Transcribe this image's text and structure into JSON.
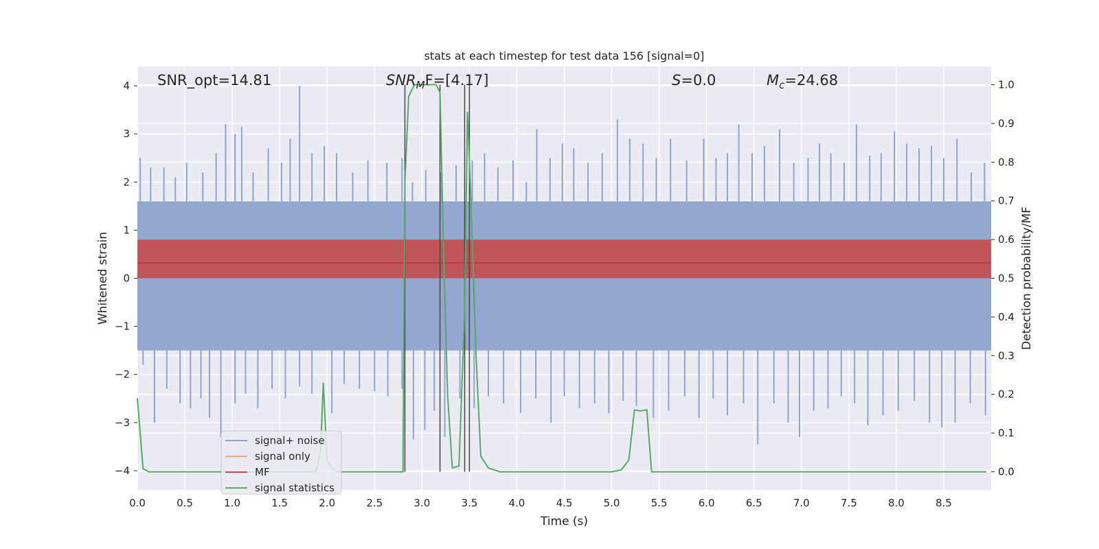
{
  "chart_data": {
    "type": "line",
    "title": "stats at each timestep for test data 156 [signal=0]",
    "xlabel": "Time (s)",
    "ylabel_left": "Whitened strain",
    "ylabel_right": "Detection probability/MF",
    "xlim": [
      0.0,
      9.0
    ],
    "ylim_left": [
      -4.4,
      4.4
    ],
    "ylim_right": [
      -0.047,
      1.047
    ],
    "x_ticks": [
      0.0,
      0.5,
      1.0,
      1.5,
      2.0,
      2.5,
      3.0,
      3.5,
      4.0,
      4.5,
      5.0,
      5.5,
      6.0,
      6.5,
      7.0,
      7.5,
      8.0,
      8.5
    ],
    "x_tick_labels": [
      "0.0",
      "0.5",
      "1.0",
      "1.5",
      "2.0",
      "2.5",
      "3.0",
      "3.5",
      "4.0",
      "4.5",
      "5.0",
      "5.5",
      "6.0",
      "6.5",
      "7.0",
      "7.5",
      "8.0",
      "8.5"
    ],
    "y_ticks_left": [
      4,
      3,
      2,
      1,
      0,
      -1,
      -2,
      -3,
      -4
    ],
    "y_tick_labels_left": [
      "4",
      "3",
      "2",
      "1",
      "0",
      "−1",
      "−2",
      "−3",
      "−4"
    ],
    "y_ticks_right": [
      1.0,
      0.9,
      0.8,
      0.7,
      0.6,
      0.5,
      0.4,
      0.3,
      0.2,
      0.1,
      0.0
    ],
    "y_tick_labels_right": [
      "1.0",
      "0.9",
      "0.8",
      "0.7",
      "0.6",
      "0.5",
      "0.4",
      "0.3",
      "0.2",
      "0.1",
      "0.0"
    ],
    "grid": true,
    "legend_position": "lower-left",
    "annotations": {
      "snr_opt": "SNR_opt=14.81",
      "snr_mf_main": "SNR",
      "snr_mf_sub": "M",
      "snr_mf_rest": "F=[4.17]",
      "s_label": "S",
      "s_value": "=0.0",
      "mc_label": "M",
      "mc_sub": "c",
      "mc_value": "=24.68"
    },
    "vertical_markers_s": [
      2.82,
      3.19,
      3.45,
      3.5
    ],
    "series": [
      {
        "name": "signal+ noise",
        "axis": "left",
        "color": "#8fa4cc",
        "noise_band": [
          -1.5,
          1.6
        ],
        "spike_peaks": [
          {
            "x": 0.03,
            "y": 2.5
          },
          {
            "x": 0.14,
            "y": 2.3
          },
          {
            "x": 0.28,
            "y": 2.3
          },
          {
            "x": 0.4,
            "y": 2.1
          },
          {
            "x": 0.52,
            "y": 2.4
          },
          {
            "x": 0.69,
            "y": 2.2
          },
          {
            "x": 0.83,
            "y": 2.6
          },
          {
            "x": 0.93,
            "y": 3.2
          },
          {
            "x": 1.03,
            "y": 3.0
          },
          {
            "x": 1.1,
            "y": 3.15
          },
          {
            "x": 1.22,
            "y": 2.2
          },
          {
            "x": 1.38,
            "y": 2.7
          },
          {
            "x": 1.52,
            "y": 2.4
          },
          {
            "x": 1.61,
            "y": 2.9
          },
          {
            "x": 1.71,
            "y": 4.0
          },
          {
            "x": 1.84,
            "y": 2.6
          },
          {
            "x": 1.97,
            "y": 2.75
          },
          {
            "x": 2.1,
            "y": 2.6
          },
          {
            "x": 2.27,
            "y": 2.2
          },
          {
            "x": 2.43,
            "y": 2.45
          },
          {
            "x": 2.63,
            "y": 2.4
          },
          {
            "x": 2.79,
            "y": 2.5
          },
          {
            "x": 2.9,
            "y": 2.0
          },
          {
            "x": 3.04,
            "y": 2.25
          },
          {
            "x": 3.2,
            "y": 2.2
          },
          {
            "x": 3.36,
            "y": 2.35
          },
          {
            "x": 3.53,
            "y": 2.45
          },
          {
            "x": 3.66,
            "y": 2.6
          },
          {
            "x": 3.8,
            "y": 2.3
          },
          {
            "x": 3.96,
            "y": 2.45
          },
          {
            "x": 4.1,
            "y": 2.0
          },
          {
            "x": 4.21,
            "y": 3.1
          },
          {
            "x": 4.35,
            "y": 2.5
          },
          {
            "x": 4.48,
            "y": 2.8
          },
          {
            "x": 4.6,
            "y": 2.7
          },
          {
            "x": 4.75,
            "y": 2.4
          },
          {
            "x": 4.9,
            "y": 2.6
          },
          {
            "x": 5.06,
            "y": 3.3
          },
          {
            "x": 5.19,
            "y": 2.9
          },
          {
            "x": 5.33,
            "y": 2.8
          },
          {
            "x": 5.47,
            "y": 2.5
          },
          {
            "x": 5.62,
            "y": 2.9
          },
          {
            "x": 5.79,
            "y": 2.45
          },
          {
            "x": 5.97,
            "y": 2.9
          },
          {
            "x": 6.1,
            "y": 2.5
          },
          {
            "x": 6.22,
            "y": 2.6
          },
          {
            "x": 6.34,
            "y": 3.2
          },
          {
            "x": 6.48,
            "y": 2.6
          },
          {
            "x": 6.61,
            "y": 2.75
          },
          {
            "x": 6.77,
            "y": 3.1
          },
          {
            "x": 6.92,
            "y": 2.4
          },
          {
            "x": 7.07,
            "y": 2.5
          },
          {
            "x": 7.19,
            "y": 2.8
          },
          {
            "x": 7.31,
            "y": 2.6
          },
          {
            "x": 7.45,
            "y": 2.4
          },
          {
            "x": 7.58,
            "y": 3.2
          },
          {
            "x": 7.72,
            "y": 2.55
          },
          {
            "x": 7.84,
            "y": 2.6
          },
          {
            "x": 7.98,
            "y": 3.05
          },
          {
            "x": 8.11,
            "y": 2.8
          },
          {
            "x": 8.24,
            "y": 2.7
          },
          {
            "x": 8.37,
            "y": 2.75
          },
          {
            "x": 8.5,
            "y": 2.5
          },
          {
            "x": 8.64,
            "y": 2.9
          },
          {
            "x": 8.79,
            "y": 2.2
          },
          {
            "x": 8.93,
            "y": 2.4
          }
        ],
        "spike_troughs": [
          {
            "x": 0.06,
            "y": -1.8
          },
          {
            "x": 0.18,
            "y": -3.0
          },
          {
            "x": 0.31,
            "y": -2.3
          },
          {
            "x": 0.45,
            "y": -2.6
          },
          {
            "x": 0.56,
            "y": -2.7
          },
          {
            "x": 0.67,
            "y": -2.5
          },
          {
            "x": 0.76,
            "y": -2.9
          },
          {
            "x": 0.88,
            "y": -3.3
          },
          {
            "x": 1.03,
            "y": -2.6
          },
          {
            "x": 1.14,
            "y": -2.4
          },
          {
            "x": 1.27,
            "y": -2.7
          },
          {
            "x": 1.42,
            "y": -2.3
          },
          {
            "x": 1.56,
            "y": -2.5
          },
          {
            "x": 1.71,
            "y": -2.25
          },
          {
            "x": 1.84,
            "y": -2.4
          },
          {
            "x": 2.05,
            "y": -2.8
          },
          {
            "x": 2.18,
            "y": -2.2
          },
          {
            "x": 2.34,
            "y": -2.3
          },
          {
            "x": 2.5,
            "y": -2.35
          },
          {
            "x": 2.64,
            "y": -2.45
          },
          {
            "x": 2.79,
            "y": -2.3
          },
          {
            "x": 2.91,
            "y": -3.35
          },
          {
            "x": 3.03,
            "y": -3.15
          },
          {
            "x": 3.13,
            "y": -2.75
          },
          {
            "x": 3.24,
            "y": -3.3
          },
          {
            "x": 3.4,
            "y": -2.5
          },
          {
            "x": 3.55,
            "y": -2.7
          },
          {
            "x": 3.7,
            "y": -2.45
          },
          {
            "x": 3.86,
            "y": -2.6
          },
          {
            "x": 4.04,
            "y": -2.8
          },
          {
            "x": 4.2,
            "y": -2.5
          },
          {
            "x": 4.36,
            "y": -3.0
          },
          {
            "x": 4.5,
            "y": -2.45
          },
          {
            "x": 4.66,
            "y": -2.7
          },
          {
            "x": 4.82,
            "y": -2.6
          },
          {
            "x": 4.97,
            "y": -2.8
          },
          {
            "x": 5.12,
            "y": -2.55
          },
          {
            "x": 5.26,
            "y": -2.65
          },
          {
            "x": 5.44,
            "y": -2.9
          },
          {
            "x": 5.6,
            "y": -2.75
          },
          {
            "x": 5.77,
            "y": -2.45
          },
          {
            "x": 5.92,
            "y": -2.9
          },
          {
            "x": 6.07,
            "y": -2.5
          },
          {
            "x": 6.22,
            "y": -2.85
          },
          {
            "x": 6.39,
            "y": -2.6
          },
          {
            "x": 6.54,
            "y": -3.45
          },
          {
            "x": 6.71,
            "y": -2.6
          },
          {
            "x": 6.86,
            "y": -3.0
          },
          {
            "x": 6.98,
            "y": -3.3
          },
          {
            "x": 7.13,
            "y": -2.75
          },
          {
            "x": 7.28,
            "y": -2.7
          },
          {
            "x": 7.42,
            "y": -2.45
          },
          {
            "x": 7.56,
            "y": -2.6
          },
          {
            "x": 7.7,
            "y": -3.05
          },
          {
            "x": 7.86,
            "y": -2.85
          },
          {
            "x": 8.02,
            "y": -2.75
          },
          {
            "x": 8.19,
            "y": -2.55
          },
          {
            "x": 8.35,
            "y": -3.0
          },
          {
            "x": 8.48,
            "y": -3.1
          },
          {
            "x": 8.62,
            "y": -3.0
          },
          {
            "x": 8.78,
            "y": -2.6
          },
          {
            "x": 8.94,
            "y": -2.85
          }
        ]
      },
      {
        "name": "signal only",
        "axis": "left",
        "color": "#e8a98a",
        "values": []
      },
      {
        "name": "MF",
        "axis": "right",
        "color": "#c44e52",
        "band": [
          0.5,
          0.6
        ],
        "mean": 0.54
      },
      {
        "name": "signal statistics",
        "axis": "right",
        "color": "#55a868",
        "x": [
          0.0,
          0.06,
          0.12,
          0.5,
          1.0,
          1.5,
          1.88,
          1.93,
          1.96,
          2.0,
          2.05,
          2.1,
          2.5,
          2.8,
          2.82,
          2.86,
          2.92,
          2.98,
          3.05,
          3.15,
          3.19,
          3.23,
          3.27,
          3.32,
          3.39,
          3.45,
          3.48,
          3.51,
          3.57,
          3.62,
          3.7,
          3.82,
          4.0,
          4.5,
          5.0,
          5.1,
          5.18,
          5.24,
          5.3,
          5.37,
          5.42,
          5.5,
          6.0,
          7.0,
          8.0,
          8.95
        ],
        "values": [
          0.19,
          0.008,
          0.0,
          0.0,
          0.0,
          0.0,
          0.0,
          0.05,
          0.23,
          0.03,
          0.01,
          0.0,
          0.0,
          0.0,
          0.75,
          0.97,
          1.0,
          1.0,
          1.0,
          1.0,
          0.98,
          0.55,
          0.2,
          0.01,
          0.015,
          0.42,
          0.93,
          0.74,
          0.3,
          0.04,
          0.01,
          0.0,
          0.0,
          0.0,
          0.0,
          0.005,
          0.03,
          0.16,
          0.157,
          0.16,
          0.0,
          0.0,
          0.0,
          0.0,
          0.0,
          0.0
        ]
      }
    ]
  }
}
